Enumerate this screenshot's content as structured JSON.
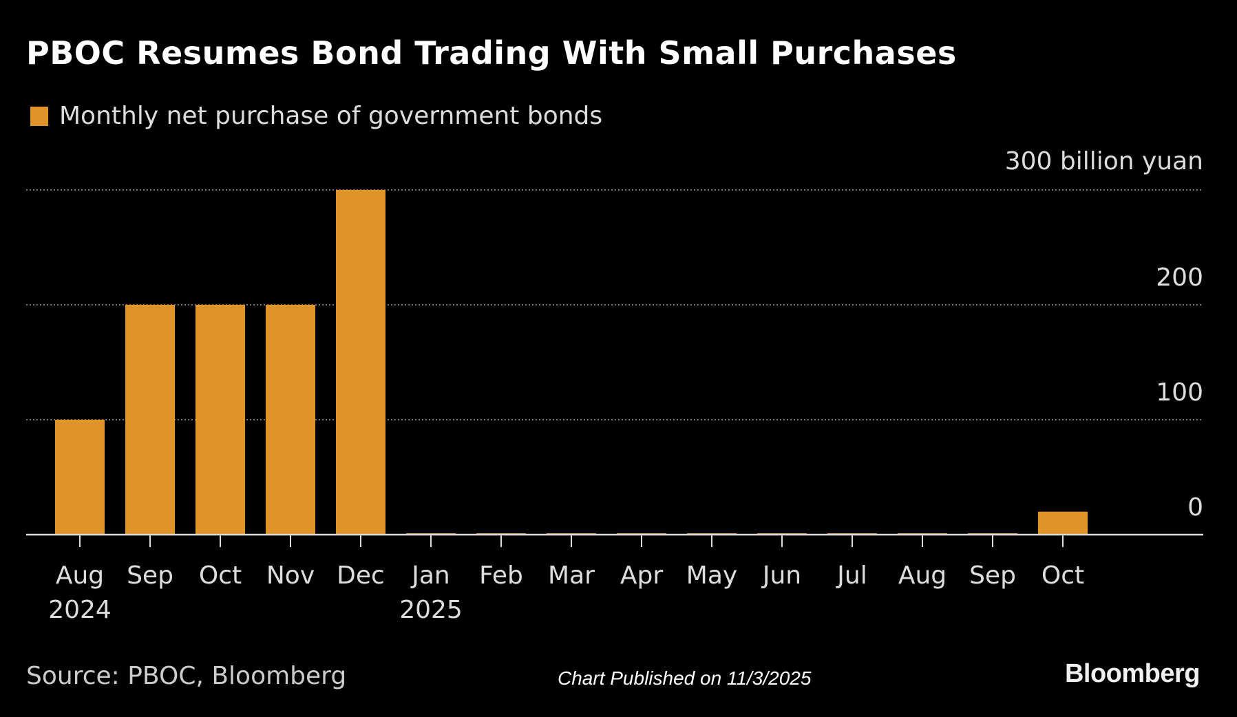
{
  "chart_data": {
    "type": "bar",
    "title": "PBOC Resumes Bond Trading With Small Purchases",
    "legend": [
      "Monthly net purchase of government bonds"
    ],
    "unit_label": "300 billion yuan",
    "categories": [
      "Aug",
      "Sep",
      "Oct",
      "Nov",
      "Dec",
      "Jan",
      "Feb",
      "Mar",
      "Apr",
      "May",
      "Jun",
      "Jul",
      "Aug",
      "Sep",
      "Oct"
    ],
    "year_labels": {
      "0": "2024",
      "5": "2025"
    },
    "series": [
      {
        "name": "Monthly net purchase of government bonds",
        "values": [
          100,
          200,
          200,
          200,
          300,
          0,
          0,
          0,
          0,
          0,
          0,
          0,
          0,
          0,
          20
        ]
      }
    ],
    "yticks": [
      0,
      100,
      200,
      300
    ],
    "ytick_labels": [
      "0",
      "100",
      "200",
      "300 billion yuan"
    ],
    "ylim": [
      0,
      300
    ],
    "grid": true,
    "y_axis_side": "right",
    "color": "#e0922b"
  },
  "footer": {
    "source": "Source: PBOC, Bloomberg",
    "published": "Chart Published on 11/3/2025",
    "logo": "Bloomberg"
  }
}
